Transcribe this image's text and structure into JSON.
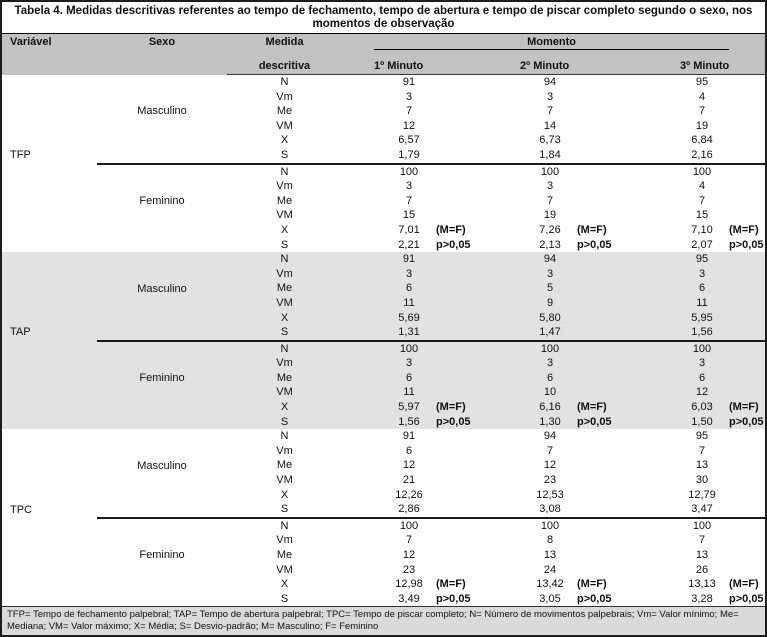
{
  "title": "Tabela 4. Medidas descritivas referentes ao tempo de fechamento, tempo de abertura e tempo de piscar completo segundo o sexo, nos momentos de observação",
  "header": {
    "variavel": "Variável",
    "sexo": "Sexo",
    "medida_line1": "Medida",
    "medida_line2": "descritiva",
    "momento": "Momento",
    "minutes": [
      "1º Minuto",
      "2º Minuto",
      "3º Minuto"
    ]
  },
  "colors": {
    "header_band": "#c2c2c2",
    "section_band": "#e2e2e2",
    "footnote_band": "#dadada"
  },
  "sections": [
    {
      "variable": "TFP",
      "groups": [
        {
          "sex": "Masculino",
          "rows": [
            {
              "measure": "N",
              "values": [
                "91",
                "94",
                "95"
              ]
            },
            {
              "measure": "Vm",
              "values": [
                "3",
                "3",
                "4"
              ]
            },
            {
              "measure": "Me",
              "values": [
                "7",
                "7",
                "7"
              ]
            },
            {
              "measure": "VM",
              "values": [
                "12",
                "14",
                "19"
              ]
            },
            {
              "measure": "X",
              "values": [
                "6,57",
                "6,73",
                "6,84"
              ]
            },
            {
              "measure": "S",
              "values": [
                "1,79",
                "1,84",
                "2,16"
              ]
            }
          ]
        },
        {
          "sex": "Feminino",
          "rows": [
            {
              "measure": "N",
              "values": [
                "100",
                "100",
                "100"
              ]
            },
            {
              "measure": "Vm",
              "values": [
                "3",
                "3",
                "4"
              ]
            },
            {
              "measure": "Me",
              "values": [
                "7",
                "7",
                "7"
              ]
            },
            {
              "measure": "VM",
              "values": [
                "15",
                "19",
                "15"
              ]
            },
            {
              "measure": "X",
              "values": [
                "7,01",
                "7,26",
                "7,10"
              ],
              "annotations": [
                "(M=F)",
                "(M=F)",
                "(M=F)"
              ]
            },
            {
              "measure": "S",
              "values": [
                "2,21",
                "2,13",
                "2,07"
              ],
              "annotations": [
                "p>0,05",
                "p>0,05",
                "p>0,05"
              ]
            }
          ]
        }
      ]
    },
    {
      "variable": "TAP",
      "groups": [
        {
          "sex": "Masculino",
          "rows": [
            {
              "measure": "N",
              "values": [
                "91",
                "94",
                "95"
              ]
            },
            {
              "measure": "Vm",
              "values": [
                "3",
                "3",
                "3"
              ]
            },
            {
              "measure": "Me",
              "values": [
                "6",
                "5",
                "6"
              ]
            },
            {
              "measure": "VM",
              "values": [
                "11",
                "9",
                "11"
              ]
            },
            {
              "measure": "X",
              "values": [
                "5,69",
                "5,80",
                "5,95"
              ]
            },
            {
              "measure": "S",
              "values": [
                "1,31",
                "1,47",
                "1,56"
              ]
            }
          ]
        },
        {
          "sex": "Feminino",
          "rows": [
            {
              "measure": "N",
              "values": [
                "100",
                "100",
                "100"
              ]
            },
            {
              "measure": "Vm",
              "values": [
                "3",
                "3",
                "3"
              ]
            },
            {
              "measure": "Me",
              "values": [
                "6",
                "6",
                "6"
              ]
            },
            {
              "measure": "VM",
              "values": [
                "11",
                "10",
                "12"
              ]
            },
            {
              "measure": "X",
              "values": [
                "5,97",
                "6,16",
                "6,03"
              ],
              "annotations": [
                "(M=F)",
                "(M=F)",
                "(M=F)"
              ]
            },
            {
              "measure": "S",
              "values": [
                "1,56",
                "1,30",
                "1,50"
              ],
              "annotations": [
                "p>0,05",
                "p>0,05",
                "p>0,05"
              ]
            }
          ]
        }
      ]
    },
    {
      "variable": "TPC",
      "groups": [
        {
          "sex": "Masculino",
          "rows": [
            {
              "measure": "N",
              "values": [
                "91",
                "94",
                "95"
              ]
            },
            {
              "measure": "Vm",
              "values": [
                "6",
                "7",
                "7"
              ]
            },
            {
              "measure": "Me",
              "values": [
                "12",
                "12",
                "13"
              ]
            },
            {
              "measure": "VM",
              "values": [
                "21",
                "23",
                "30"
              ]
            },
            {
              "measure": "X",
              "values": [
                "12,26",
                "12,53",
                "12,79"
              ]
            },
            {
              "measure": "S",
              "values": [
                "2,86",
                "3,08",
                "3,47"
              ]
            }
          ]
        },
        {
          "sex": "Feminino",
          "rows": [
            {
              "measure": "N",
              "values": [
                "100",
                "100",
                "100"
              ]
            },
            {
              "measure": "Vm",
              "values": [
                "7",
                "8",
                "7"
              ]
            },
            {
              "measure": "Me",
              "values": [
                "12",
                "13",
                "13"
              ]
            },
            {
              "measure": "VM",
              "values": [
                "23",
                "24",
                "26"
              ]
            },
            {
              "measure": "X",
              "values": [
                "12,98",
                "13,42",
                "13,13"
              ],
              "annotations": [
                "(M=F)",
                "(M=F)",
                "(M=F)"
              ]
            },
            {
              "measure": "S",
              "values": [
                "3,49",
                "3,05",
                "3,28"
              ],
              "annotations": [
                "p>0,05",
                "p>0,05",
                "p>0,05"
              ]
            }
          ]
        }
      ]
    }
  ],
  "footnote": "TFP= Tempo de fechamento palpebral; TAP= Tempo de abertura palpebral; TPC= Tempo de piscar completo; N= Número de movimentos palpebrais; Vm= Valor mínimo; Me= Mediana; VM= Valor máximo; X= Média; S= Desvio-padrão; M= Masculino; F= Feminino"
}
